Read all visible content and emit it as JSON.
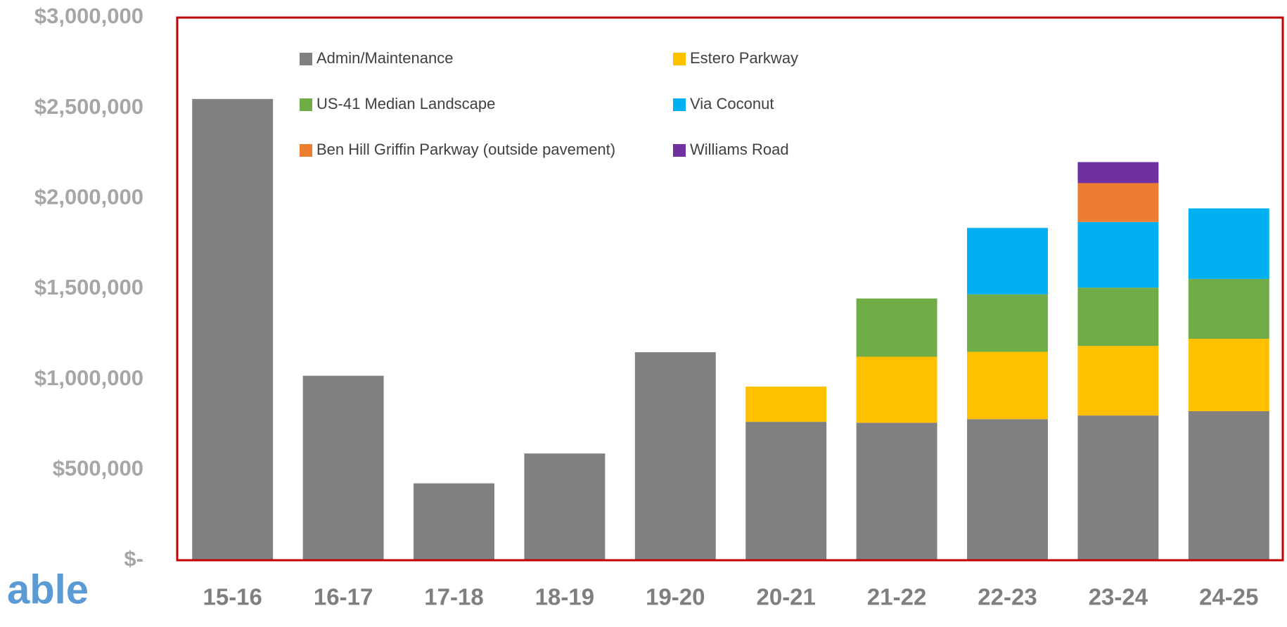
{
  "chart_data": {
    "type": "stacked_bar",
    "categories": [
      "15-16",
      "16-17",
      "17-18",
      "18-19",
      "19-20",
      "20-21",
      "21-22",
      "22-23",
      "23-24",
      "24-25"
    ],
    "series": [
      {
        "name": "Admin/Maintenance",
        "color": "#808080",
        "values": [
          2550000,
          1020000,
          425000,
          590000,
          1150000,
          765000,
          760000,
          780000,
          800000,
          824000
        ]
      },
      {
        "name": "Estero Parkway",
        "color": "#ffc000",
        "values": [
          null,
          null,
          null,
          null,
          null,
          195000,
          365000,
          372000,
          385000,
          400000
        ]
      },
      {
        "name": "US-41 Median Landscape",
        "color": "#70ad47",
        "values": [
          null,
          null,
          null,
          null,
          null,
          null,
          322000,
          318000,
          322000,
          331000
        ]
      },
      {
        "name": "Via Coconut",
        "color": "#00b0f0",
        "values": [
          null,
          null,
          null,
          null,
          null,
          null,
          null,
          367000,
          363000,
          390000
        ]
      },
      {
        "name": "Ben Hill Griffin Parkway (outside pavement)",
        "color": "#ed7d31",
        "values": [
          null,
          null,
          null,
          null,
          null,
          null,
          null,
          null,
          215000,
          null
        ]
      },
      {
        "name": "Williams Road",
        "color": "#7030a0",
        "values": [
          null,
          null,
          null,
          null,
          null,
          null,
          null,
          null,
          116000,
          null
        ]
      }
    ],
    "ylim": [
      0,
      3000000
    ],
    "yticks": [
      {
        "value": 0,
        "label": "$-"
      },
      {
        "value": 500000,
        "label": "$500,000"
      },
      {
        "value": 1000000,
        "label": "$1,000,000"
      },
      {
        "value": 1500000,
        "label": "$1,500,000"
      },
      {
        "value": 2000000,
        "label": "$2,000,000"
      },
      {
        "value": 2500000,
        "label": "$2,500,000"
      },
      {
        "value": 3000000,
        "label": "$3,000,000"
      }
    ],
    "grid": false,
    "legend": "top",
    "frame_color": "#c00000"
  },
  "other_text": "able"
}
